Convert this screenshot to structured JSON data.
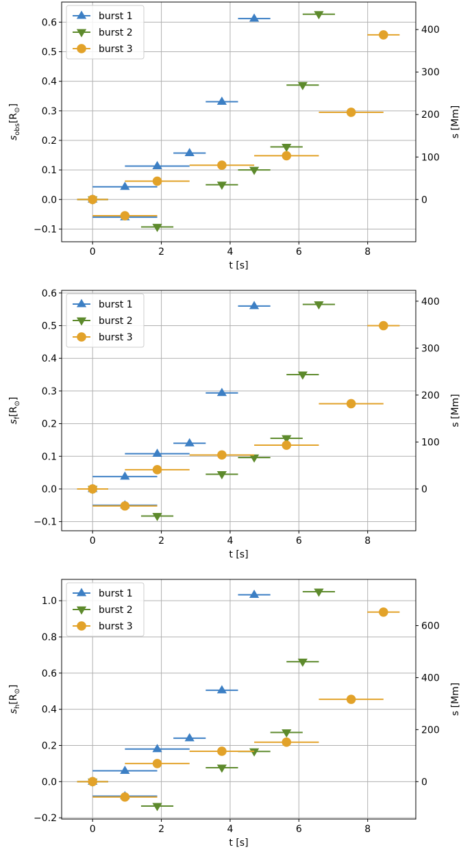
{
  "colors": {
    "burst1": "#3c7fc4",
    "burst2": "#5d8a2c",
    "burst3": "#e2a229",
    "grid": "#b0b0b0"
  },
  "chart_data": [
    {
      "type": "scatter",
      "ylabel_main": "s",
      "ylabel_sub": "obs",
      "ylabel_unit": "[R",
      "ylabel_close": "]",
      "xlabel": "t [s]",
      "y2label": "s [Mm]",
      "xlim": [
        -0.9,
        9.4
      ],
      "ylim": [
        -0.143,
        0.668
      ],
      "xticks": [
        0,
        2,
        4,
        6,
        8
      ],
      "yticks": [
        -0.1,
        0.0,
        0.1,
        0.2,
        0.3,
        0.4,
        0.5,
        0.6
      ],
      "ytick_labels": [
        "−0.1",
        "0.0",
        "0.1",
        "0.2",
        "0.3",
        "0.4",
        "0.5",
        "0.6"
      ],
      "y2ticks": [
        0,
        100,
        200,
        300,
        400
      ],
      "mm_per_unit": 695.7,
      "legend": "top-left",
      "series": [
        {
          "name": "burst 1",
          "marker": "triangle-up",
          "color": "#3c7fc4",
          "points": [
            {
              "x": 0.0,
              "y": 0.0,
              "xmin": -0.45,
              "xmax": 0.45
            },
            {
              "x": 0.94,
              "y": -0.06,
              "xmin": 0.0,
              "xmax": 1.88
            },
            {
              "x": 0.94,
              "y": 0.043,
              "xmin": 0.0,
              "xmax": 1.88
            },
            {
              "x": 1.88,
              "y": 0.113,
              "xmin": 0.94,
              "xmax": 2.82
            },
            {
              "x": 2.82,
              "y": 0.157,
              "xmin": 2.35,
              "xmax": 3.29
            },
            {
              "x": 3.76,
              "y": 0.331,
              "xmin": 3.29,
              "xmax": 4.23
            },
            {
              "x": 4.7,
              "y": 0.612,
              "xmin": 4.23,
              "xmax": 5.17
            }
          ]
        },
        {
          "name": "burst 2",
          "marker": "triangle-down",
          "color": "#5d8a2c",
          "points": [
            {
              "x": 0.0,
              "y": 0.0,
              "xmin": -0.45,
              "xmax": 0.45
            },
            {
              "x": 1.88,
              "y": -0.093,
              "xmin": 1.41,
              "xmax": 2.35
            },
            {
              "x": 3.76,
              "y": 0.05,
              "xmin": 3.29,
              "xmax": 4.23
            },
            {
              "x": 4.7,
              "y": 0.1,
              "xmin": 4.23,
              "xmax": 5.17
            },
            {
              "x": 5.64,
              "y": 0.178,
              "xmin": 5.17,
              "xmax": 6.11
            },
            {
              "x": 6.11,
              "y": 0.387,
              "xmin": 5.64,
              "xmax": 6.58
            },
            {
              "x": 6.58,
              "y": 0.627,
              "xmin": 6.11,
              "xmax": 7.05
            }
          ]
        },
        {
          "name": "burst 3",
          "marker": "circle",
          "color": "#e2a229",
          "points": [
            {
              "x": 0.0,
              "y": 0.0,
              "xmin": -0.45,
              "xmax": 0.45
            },
            {
              "x": 0.94,
              "y": -0.055,
              "xmin": 0.0,
              "xmax": 1.88
            },
            {
              "x": 1.88,
              "y": 0.062,
              "xmin": 0.94,
              "xmax": 2.82
            },
            {
              "x": 3.76,
              "y": 0.116,
              "xmin": 2.82,
              "xmax": 4.7
            },
            {
              "x": 5.64,
              "y": 0.148,
              "xmin": 4.7,
              "xmax": 6.58
            },
            {
              "x": 7.52,
              "y": 0.295,
              "xmin": 6.58,
              "xmax": 8.46
            },
            {
              "x": 8.46,
              "y": 0.557,
              "xmin": 7.99,
              "xmax": 8.93
            }
          ]
        }
      ]
    },
    {
      "type": "scatter",
      "ylabel_main": "s",
      "ylabel_sub": "f",
      "ylabel_unit": "[R",
      "ylabel_close": "]",
      "xlabel": "t [s]",
      "y2label": "s [Mm]",
      "xlim": [
        -0.9,
        9.4
      ],
      "ylim": [
        -0.128,
        0.608
      ],
      "xticks": [
        0,
        2,
        4,
        6,
        8
      ],
      "yticks": [
        -0.1,
        0.0,
        0.1,
        0.2,
        0.3,
        0.4,
        0.5,
        0.6
      ],
      "ytick_labels": [
        "−0.1",
        "0.0",
        "0.1",
        "0.2",
        "0.3",
        "0.4",
        "0.5",
        "0.6"
      ],
      "y2ticks": [
        0,
        100,
        200,
        300,
        400
      ],
      "mm_per_unit": 695.7,
      "legend": "top-left",
      "series": [
        {
          "name": "burst 1",
          "marker": "triangle-up",
          "color": "#3c7fc4",
          "points": [
            {
              "x": 0.0,
              "y": 0.0,
              "xmin": -0.45,
              "xmax": 0.45
            },
            {
              "x": 0.94,
              "y": -0.05,
              "xmin": 0.0,
              "xmax": 1.88
            },
            {
              "x": 0.94,
              "y": 0.038,
              "xmin": 0.0,
              "xmax": 1.88
            },
            {
              "x": 1.88,
              "y": 0.108,
              "xmin": 0.94,
              "xmax": 2.82
            },
            {
              "x": 2.82,
              "y": 0.14,
              "xmin": 2.35,
              "xmax": 3.29
            },
            {
              "x": 3.76,
              "y": 0.294,
              "xmin": 3.29,
              "xmax": 4.23
            },
            {
              "x": 4.7,
              "y": 0.56,
              "xmin": 4.23,
              "xmax": 5.17
            }
          ]
        },
        {
          "name": "burst 2",
          "marker": "triangle-down",
          "color": "#5d8a2c",
          "points": [
            {
              "x": 0.0,
              "y": 0.0,
              "xmin": -0.45,
              "xmax": 0.45
            },
            {
              "x": 1.88,
              "y": -0.083,
              "xmin": 1.41,
              "xmax": 2.35
            },
            {
              "x": 3.76,
              "y": 0.045,
              "xmin": 3.29,
              "xmax": 4.23
            },
            {
              "x": 4.7,
              "y": 0.096,
              "xmin": 4.23,
              "xmax": 5.17
            },
            {
              "x": 5.64,
              "y": 0.155,
              "xmin": 5.17,
              "xmax": 6.11
            },
            {
              "x": 6.11,
              "y": 0.35,
              "xmin": 5.64,
              "xmax": 6.58
            },
            {
              "x": 6.58,
              "y": 0.565,
              "xmin": 6.11,
              "xmax": 7.05
            }
          ]
        },
        {
          "name": "burst 3",
          "marker": "circle",
          "color": "#e2a229",
          "points": [
            {
              "x": 0.0,
              "y": 0.0,
              "xmin": -0.45,
              "xmax": 0.45
            },
            {
              "x": 0.94,
              "y": -0.052,
              "xmin": 0.0,
              "xmax": 1.88
            },
            {
              "x": 1.88,
              "y": 0.059,
              "xmin": 0.94,
              "xmax": 2.82
            },
            {
              "x": 3.76,
              "y": 0.104,
              "xmin": 2.82,
              "xmax": 4.7
            },
            {
              "x": 5.64,
              "y": 0.134,
              "xmin": 4.7,
              "xmax": 6.58
            },
            {
              "x": 7.52,
              "y": 0.261,
              "xmin": 6.58,
              "xmax": 8.46
            },
            {
              "x": 8.46,
              "y": 0.5,
              "xmin": 7.99,
              "xmax": 8.93
            }
          ]
        }
      ]
    },
    {
      "type": "scatter",
      "ylabel_main": "s",
      "ylabel_sub": "h",
      "ylabel_unit": "[R",
      "ylabel_close": "]",
      "xlabel": "t [s]",
      "y2label": "s [Mm]",
      "xlim": [
        -0.9,
        9.4
      ],
      "ylim": [
        -0.207,
        1.118
      ],
      "xticks": [
        0,
        2,
        4,
        6,
        8
      ],
      "yticks": [
        -0.2,
        0.0,
        0.2,
        0.4,
        0.6,
        0.8,
        1.0
      ],
      "ytick_labels": [
        "−0.2",
        "0.0",
        "0.2",
        "0.4",
        "0.6",
        "0.8",
        "1.0"
      ],
      "y2ticks": [
        0,
        200,
        400,
        600
      ],
      "mm_per_unit": 695.7,
      "legend": "top-left",
      "series": [
        {
          "name": "burst 1",
          "marker": "triangle-up",
          "color": "#3c7fc4",
          "points": [
            {
              "x": 0.0,
              "y": 0.0,
              "xmin": -0.45,
              "xmax": 0.45
            },
            {
              "x": 0.94,
              "y": -0.08,
              "xmin": 0.0,
              "xmax": 1.88
            },
            {
              "x": 0.94,
              "y": 0.06,
              "xmin": 0.0,
              "xmax": 1.88
            },
            {
              "x": 1.88,
              "y": 0.18,
              "xmin": 0.94,
              "xmax": 2.82
            },
            {
              "x": 2.82,
              "y": 0.24,
              "xmin": 2.35,
              "xmax": 3.29
            },
            {
              "x": 3.76,
              "y": 0.505,
              "xmin": 3.29,
              "xmax": 4.23
            },
            {
              "x": 4.7,
              "y": 1.033,
              "xmin": 4.23,
              "xmax": 5.17
            }
          ]
        },
        {
          "name": "burst 2",
          "marker": "triangle-down",
          "color": "#5d8a2c",
          "points": [
            {
              "x": 0.0,
              "y": 0.0,
              "xmin": -0.45,
              "xmax": 0.45
            },
            {
              "x": 1.88,
              "y": -0.135,
              "xmin": 1.41,
              "xmax": 2.35
            },
            {
              "x": 3.76,
              "y": 0.077,
              "xmin": 3.29,
              "xmax": 4.23
            },
            {
              "x": 4.7,
              "y": 0.167,
              "xmin": 4.23,
              "xmax": 5.17
            },
            {
              "x": 5.64,
              "y": 0.272,
              "xmin": 5.17,
              "xmax": 6.11
            },
            {
              "x": 6.11,
              "y": 0.663,
              "xmin": 5.64,
              "xmax": 6.58
            },
            {
              "x": 6.58,
              "y": 1.05,
              "xmin": 6.11,
              "xmax": 7.05
            }
          ]
        },
        {
          "name": "burst 3",
          "marker": "circle",
          "color": "#e2a229",
          "points": [
            {
              "x": 0.0,
              "y": 0.0,
              "xmin": -0.45,
              "xmax": 0.45
            },
            {
              "x": 0.94,
              "y": -0.085,
              "xmin": 0.0,
              "xmax": 1.88
            },
            {
              "x": 1.88,
              "y": 0.1,
              "xmin": 0.94,
              "xmax": 2.82
            },
            {
              "x": 3.76,
              "y": 0.168,
              "xmin": 2.82,
              "xmax": 4.7
            },
            {
              "x": 5.64,
              "y": 0.218,
              "xmin": 4.7,
              "xmax": 6.58
            },
            {
              "x": 7.52,
              "y": 0.455,
              "xmin": 6.58,
              "xmax": 8.46
            },
            {
              "x": 8.46,
              "y": 0.937,
              "xmin": 7.99,
              "xmax": 8.93
            }
          ]
        }
      ]
    }
  ]
}
